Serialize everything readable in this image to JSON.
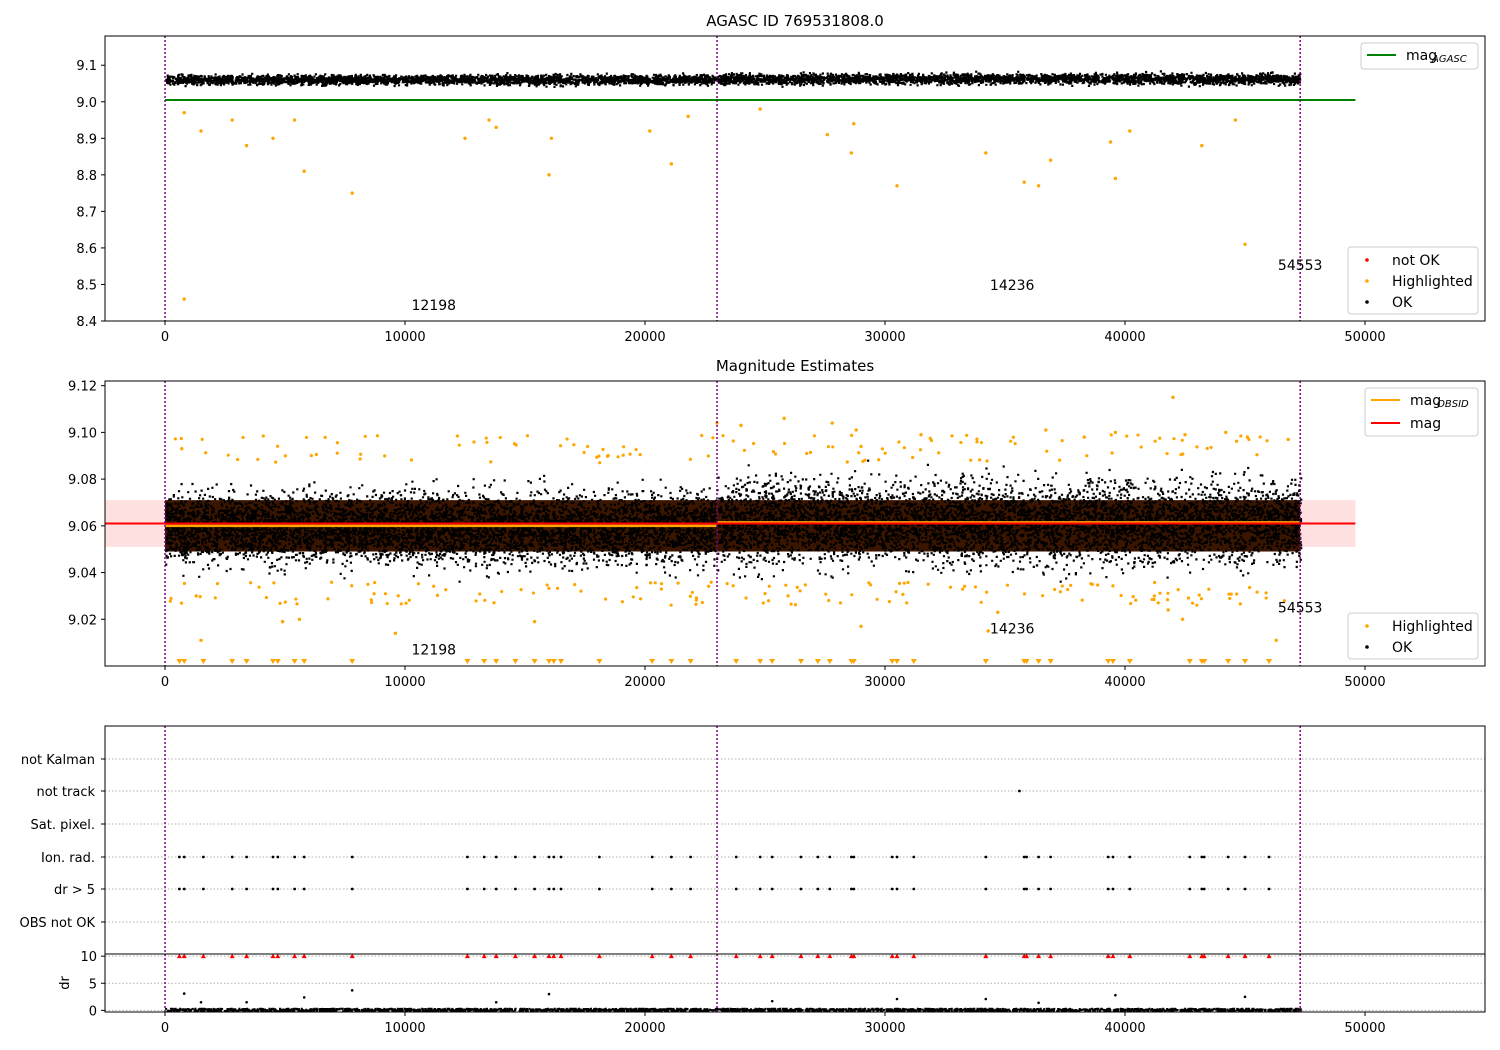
{
  "chart_data": [
    {
      "type": "scatter",
      "title": "AGASC ID 769531808.0",
      "xlim": [
        -2500,
        55000
      ],
      "ylim": [
        8.4,
        9.18
      ],
      "xticks": [
        0,
        10000,
        20000,
        30000,
        40000,
        50000
      ],
      "yticks": [
        8.4,
        8.5,
        8.6,
        8.7,
        8.8,
        8.9,
        9.0,
        9.1
      ],
      "ytick_labels": [
        "8.4",
        "8.5",
        "8.6",
        "8.7",
        "8.8",
        "8.9",
        "9.0",
        "9.1"
      ],
      "series": [
        {
          "name": "mag_AGASC",
          "kind": "line",
          "color": "#008000",
          "y": 9.005,
          "x": [
            0,
            49600
          ]
        },
        {
          "name": "not OK",
          "kind": "points",
          "color": "#ff0000",
          "points": []
        },
        {
          "name": "Highlighted",
          "kind": "points",
          "color": "#ffa500",
          "points": [
            [
              800,
              8.97
            ],
            [
              1500,
              8.92
            ],
            [
              2800,
              8.95
            ],
            [
              3400,
              8.88
            ],
            [
              4500,
              8.9
            ],
            [
              5400,
              8.95
            ],
            [
              5800,
              8.81
            ],
            [
              7800,
              8.75
            ],
            [
              12500,
              8.9
            ],
            [
              13500,
              8.95
            ],
            [
              13800,
              8.93
            ],
            [
              16000,
              8.8
            ],
            [
              16100,
              8.9
            ],
            [
              20200,
              8.92
            ],
            [
              21100,
              8.83
            ],
            [
              21800,
              8.96
            ],
            [
              24800,
              8.98
            ],
            [
              27600,
              8.91
            ],
            [
              28600,
              8.86
            ],
            [
              28700,
              8.94
            ],
            [
              30500,
              8.77
            ],
            [
              34200,
              8.86
            ],
            [
              35800,
              8.78
            ],
            [
              36400,
              8.77
            ],
            [
              36900,
              8.84
            ],
            [
              39400,
              8.89
            ],
            [
              39600,
              8.79
            ],
            [
              40200,
              8.92
            ],
            [
              43200,
              8.88
            ],
            [
              44600,
              8.95
            ],
            [
              45000,
              8.61
            ],
            [
              800,
              8.46
            ]
          ]
        },
        {
          "name": "OK",
          "kind": "band",
          "color": "#000000",
          "segments": [
            {
              "x": [
                0,
                23000
              ],
              "y": [
                9.04,
                9.085
              ]
            },
            {
              "x": [
                23000,
                47300
              ],
              "y": [
                9.04,
                9.09
              ]
            }
          ]
        }
      ],
      "legend_upper": {
        "location": "upper right",
        "entries": [
          {
            "label": "mag",
            "sub": "AGASC",
            "color": "#008000"
          }
        ]
      },
      "legend_lower": {
        "location": "lower right",
        "entries": [
          {
            "label": "not OK",
            "color": "#ff0000"
          },
          {
            "label": "Highlighted",
            "color": "#ffa500"
          },
          {
            "label": "OK",
            "color": "#000000"
          }
        ]
      },
      "obsid_labels": [
        {
          "text": "12198",
          "x": 11200,
          "y": 8.43
        },
        {
          "text": "14236",
          "x": 35300,
          "y": 8.485
        },
        {
          "text": "54553",
          "x": 47300,
          "y": 8.54
        }
      ],
      "vlines": [
        0,
        23000,
        47300
      ]
    },
    {
      "type": "scatter",
      "title": "Magnitude Estimates",
      "xlim": [
        -2500,
        55000
      ],
      "ylim": [
        9.0,
        9.122
      ],
      "xticks": [
        0,
        10000,
        20000,
        30000,
        40000,
        50000
      ],
      "yticks": [
        9.02,
        9.04,
        9.06,
        9.08,
        9.1,
        9.12
      ],
      "ytick_labels": [
        "9.02",
        "9.04",
        "9.06",
        "9.08",
        "9.10",
        "9.12"
      ],
      "series": [
        {
          "name": "mag_OBSID",
          "kind": "step",
          "color": "#ffa500",
          "segments": [
            {
              "x": [
                0,
                23000
              ],
              "y": 9.06
            },
            {
              "x": [
                23000,
                47300
              ],
              "y": 9.0615
            }
          ]
        },
        {
          "name": "mag",
          "kind": "line",
          "color": "#ff0000",
          "y": 9.061,
          "x": [
            -2500,
            49600
          ],
          "band": [
            9.051,
            9.071
          ]
        },
        {
          "name": "OK",
          "kind": "band",
          "color": "#000000",
          "segments": [
            {
              "x": [
                0,
                23000
              ],
              "y": [
                9.033,
                9.086
              ]
            },
            {
              "x": [
                23000,
                47300
              ],
              "y": [
                9.031,
                9.092
              ]
            }
          ]
        },
        {
          "name": "Highlighted",
          "kind": "points",
          "color": "#ffa500",
          "points": [
            [
              700,
              9.093
            ],
            [
              1500,
              9.011
            ],
            [
              1300,
              9.03
            ],
            [
              4900,
              9.019
            ],
            [
              5600,
              9.02
            ],
            [
              9600,
              9.014
            ],
            [
              15400,
              9.019
            ],
            [
              23000,
              9.104
            ],
            [
              24000,
              9.103
            ],
            [
              25800,
              9.106
            ],
            [
              27800,
              9.104
            ],
            [
              28800,
              9.101
            ],
            [
              29000,
              9.094
            ],
            [
              29000,
              9.017
            ],
            [
              31500,
              9.099
            ],
            [
              34300,
              9.015
            ],
            [
              34700,
              9.023
            ],
            [
              36700,
              9.101
            ],
            [
              38300,
              9.098
            ],
            [
              39600,
              9.1
            ],
            [
              42000,
              9.115
            ],
            [
              42500,
              9.099
            ],
            [
              44200,
              9.1
            ],
            [
              45100,
              9.098
            ],
            [
              41800,
              9.024
            ],
            [
              42400,
              9.02
            ],
            [
              46300,
              9.011
            ],
            [
              46800,
              9.097
            ]
          ]
        }
      ],
      "legend_upper": {
        "location": "upper right",
        "entries": [
          {
            "label": "mag",
            "sub": "OBSID",
            "color": "#ffa500"
          },
          {
            "label": "mag",
            "sub": "",
            "color": "#ff0000"
          }
        ]
      },
      "legend_lower": {
        "location": "lower right",
        "entries": [
          {
            "label": "Highlighted",
            "color": "#ffa500"
          },
          {
            "label": "OK",
            "color": "#000000"
          }
        ]
      },
      "obsid_labels": [
        {
          "text": "12198",
          "x": 11200,
          "y": 9.005
        },
        {
          "text": "14236",
          "x": 35300,
          "y": 9.014
        },
        {
          "text": "54553",
          "x": 47300,
          "y": 9.023
        }
      ],
      "vlines": [
        0,
        23000,
        47300
      ]
    },
    {
      "type": "scatter",
      "xlim": [
        -2500,
        55000
      ],
      "categories": [
        "not Kalman",
        "not track",
        "Sat. pixel.",
        "Ion. rad.",
        "dr > 5",
        "OBS not OK"
      ],
      "flag_points": {
        "not track": [
          35600
        ],
        "Ion. rad.": [
          600,
          800,
          1600,
          2800,
          3400,
          4500,
          4700,
          5400,
          5800,
          7800,
          12600,
          13300,
          13800,
          14600,
          15400,
          16000,
          16200,
          16500,
          18100,
          20300,
          21100,
          21900,
          23800,
          24800,
          25300,
          26500,
          27200,
          27700,
          28600,
          28700,
          30300,
          30500,
          31200,
          34200,
          35800,
          35900,
          36400,
          36900,
          39300,
          39500,
          40200,
          42700,
          43200,
          43300,
          44300,
          45000,
          46000
        ],
        "dr > 5": [
          600,
          800,
          1600,
          2800,
          3400,
          4500,
          4700,
          5400,
          5800,
          7800,
          12600,
          13300,
          13800,
          14600,
          15400,
          16000,
          16200,
          16500,
          18100,
          20300,
          21100,
          21900,
          23800,
          24800,
          25300,
          26500,
          27200,
          27700,
          28600,
          28700,
          30300,
          30500,
          31200,
          34200,
          35800,
          35900,
          36400,
          36900,
          39300,
          39500,
          40200,
          42700,
          43200,
          43300,
          44300,
          45000,
          46000
        ]
      },
      "vlines": [
        0,
        23000,
        47300
      ]
    },
    {
      "type": "scatter",
      "xlim": [
        -2500,
        55000
      ],
      "ylim": [
        -0.3,
        10.4
      ],
      "ylabel": "dr",
      "xticks": [
        0,
        10000,
        20000,
        30000,
        40000,
        50000
      ],
      "yticks": [
        0,
        5,
        10
      ],
      "ytick_labels": [
        "0",
        "5",
        "10"
      ],
      "clipped_points_at_10": [
        600,
        800,
        1600,
        2800,
        3400,
        4500,
        4700,
        5400,
        5800,
        7800,
        12600,
        13300,
        13800,
        14600,
        15400,
        16000,
        16200,
        16500,
        18100,
        20300,
        21100,
        21900,
        23800,
        24800,
        25300,
        26500,
        27200,
        27700,
        28600,
        28700,
        30300,
        30500,
        31200,
        34200,
        35800,
        35900,
        36400,
        36900,
        39300,
        39500,
        40200,
        42700,
        43200,
        43300,
        44300,
        45000,
        46000
      ],
      "points": [
        [
          800,
          3.1
        ],
        [
          1500,
          1.5
        ],
        [
          3400,
          1.5
        ],
        [
          5800,
          2.4
        ],
        [
          7800,
          3.7
        ],
        [
          13800,
          1.5
        ],
        [
          16000,
          3.0
        ],
        [
          25300,
          1.7
        ],
        [
          30500,
          2.1
        ],
        [
          34200,
          2.1
        ],
        [
          36400,
          1.4
        ],
        [
          39600,
          2.8
        ],
        [
          45000,
          2.5
        ]
      ],
      "vlines": [
        0,
        23000,
        47300
      ]
    }
  ]
}
